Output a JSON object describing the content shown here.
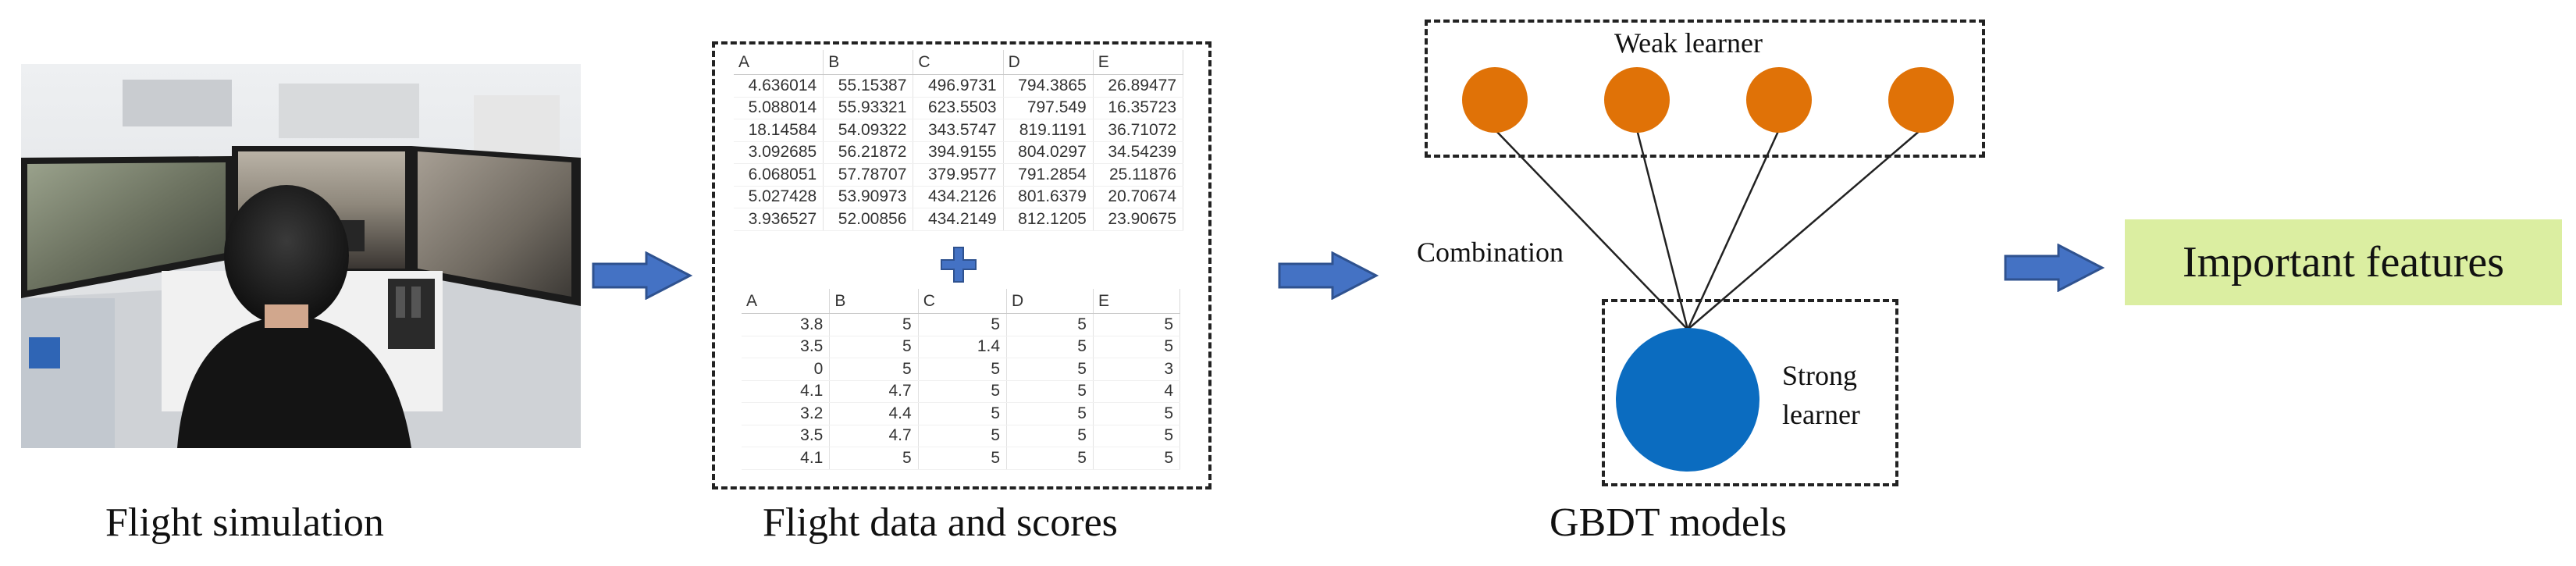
{
  "panels": {
    "simulation": {
      "caption": "Flight simulation"
    },
    "data": {
      "caption": "Flight data and scores"
    },
    "gbdt": {
      "caption": "GBDT models"
    }
  },
  "flight_data_table": {
    "headers": [
      "A",
      "B",
      "C",
      "D",
      "E"
    ],
    "rows": [
      [
        "4.636014",
        "55.15387",
        "496.9731",
        "794.3865",
        "26.89477"
      ],
      [
        "5.088014",
        "55.93321",
        "623.5503",
        "797.549",
        "16.35723"
      ],
      [
        "18.14584",
        "54.09322",
        "343.5747",
        "819.1191",
        "36.71072"
      ],
      [
        "3.092685",
        "56.21872",
        "394.9155",
        "804.0297",
        "34.54239"
      ],
      [
        "6.068051",
        "57.78707",
        "379.9577",
        "791.2854",
        "25.11876"
      ],
      [
        "5.027428",
        "53.90973",
        "434.2126",
        "801.6379",
        "20.70674"
      ],
      [
        "3.936527",
        "52.00856",
        "434.2149",
        "812.1205",
        "23.90675"
      ]
    ]
  },
  "scores_table": {
    "headers": [
      "A",
      "B",
      "C",
      "D",
      "E"
    ],
    "rows": [
      [
        "3.8",
        "5",
        "5",
        "5",
        "5"
      ],
      [
        "3.5",
        "5",
        "1.4",
        "5",
        "5"
      ],
      [
        "0",
        "5",
        "5",
        "5",
        "3"
      ],
      [
        "4.1",
        "4.7",
        "5",
        "5",
        "4"
      ],
      [
        "3.2",
        "4.4",
        "5",
        "5",
        "5"
      ],
      [
        "3.5",
        "4.7",
        "5",
        "5",
        "5"
      ],
      [
        "4.1",
        "5",
        "5",
        "5",
        "5"
      ]
    ]
  },
  "gbdt": {
    "weak_learner_label": "Weak learner",
    "combination_label": "Combination",
    "strong_learner_label_line1": "Strong",
    "strong_learner_label_line2": "learner",
    "weak_learner_count": 4
  },
  "output": {
    "label": "Important features"
  },
  "colors": {
    "weak_learner": "#e07207",
    "strong_learner": "#0b6cc0",
    "arrow_fill": "#4472c4",
    "arrow_stroke": "#2f528f",
    "output_background": "#dbeea1",
    "plus_sign": "#4472c4"
  }
}
